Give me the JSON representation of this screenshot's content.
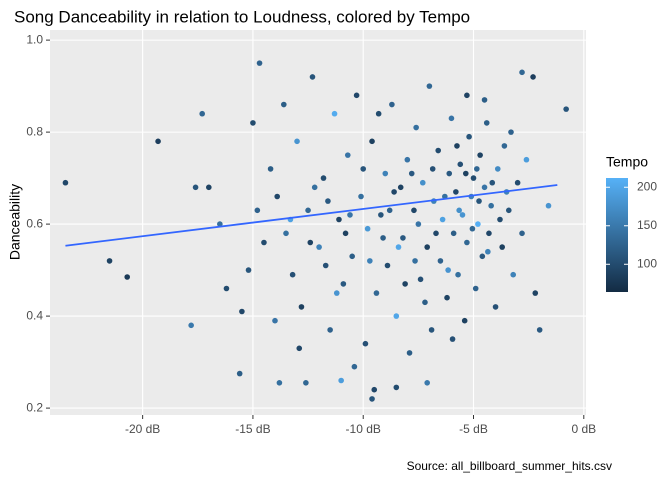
{
  "chart_data": {
    "type": "scatter",
    "title": "Song Danceability in relation to Loudness, colored by Tempo",
    "y_label": "Danceability",
    "caption": "Source: all_billboard_summer_hits.csv",
    "legend_title": "Tempo",
    "xlim": [
      -24.2,
      0.1
    ],
    "ylim": [
      0.185,
      1.022
    ],
    "xticks": [
      {
        "value": -20,
        "label": "-20 dB"
      },
      {
        "value": -15,
        "label": "-15 dB"
      },
      {
        "value": -10,
        "label": "-10 dB"
      },
      {
        "value": -5,
        "label": "-5 dB"
      },
      {
        "value": 0,
        "label": "0 dB"
      }
    ],
    "yticks": [
      {
        "value": 0.2,
        "label": "0.2"
      },
      {
        "value": 0.4,
        "label": "0.4"
      },
      {
        "value": 0.6,
        "label": "0.6"
      },
      {
        "value": 0.8,
        "label": "0.8"
      },
      {
        "value": 1.0,
        "label": "1.0"
      }
    ],
    "grid": true,
    "color_scale": {
      "range": [
        64,
        212
      ],
      "ticks": [
        100,
        150,
        200
      ],
      "low": "#132B43",
      "high": "#56B1F7"
    },
    "x": [
      -23.5,
      -21.5,
      -20.7,
      -19.3,
      -17.8,
      -17.6,
      -17.3,
      -17.0,
      -16.5,
      -16.2,
      -15.5,
      -15.6,
      -15.2,
      -14.7,
      -15.0,
      -13.8,
      -12.6,
      -11.0,
      -9.6,
      -9.5,
      -8.5,
      -7.1,
      -5.3,
      -4.5,
      -2.8,
      -0.8,
      -2.3,
      -1.6,
      -14.2,
      -13.9,
      -13.5,
      -13.2,
      -13.0,
      -12.8,
      -12.5,
      -12.3,
      -12.0,
      -11.8,
      -11.5,
      -11.3,
      -11.1,
      -10.9,
      -10.7,
      -10.5,
      -10.3,
      -10.1,
      -9.9,
      -9.8,
      -9.6,
      -9.4,
      -9.2,
      -9.0,
      -8.9,
      -8.7,
      -8.5,
      -8.3,
      -8.2,
      -8.0,
      -7.9,
      -7.7,
      -7.6,
      -7.4,
      -7.3,
      -7.1,
      -7.0,
      -6.9,
      -6.8,
      -6.6,
      -6.5,
      -6.4,
      -6.2,
      -6.1,
      -6.0,
      -5.9,
      -5.8,
      -5.7,
      -5.6,
      -5.5,
      -5.4,
      -5.3,
      -5.2,
      -5.1,
      -5.0,
      -4.9,
      -4.8,
      -4.7,
      -4.6,
      -4.5,
      -4.4,
      -4.3,
      -4.2,
      -4.0,
      -3.9,
      -3.7,
      -3.6,
      -3.4,
      -3.2,
      -3.0,
      -2.8,
      -2.6,
      -2.2,
      -2.0,
      -14.0,
      -13.6,
      -12.9,
      -12.2,
      -11.7,
      -11.2,
      -10.8,
      -10.4,
      -10.0,
      -9.7,
      -9.3,
      -8.8,
      -8.4,
      -8.1,
      -7.8,
      -7.5,
      -7.2,
      -6.7,
      -6.3,
      -5.95,
      -5.65,
      -5.35,
      -5.05,
      -4.75,
      -4.35,
      -3.8,
      -3.3,
      -13.3,
      -12.4,
      -11.6,
      -10.6,
      -9.1,
      -8.6,
      -7.65,
      -6.85,
      -6.15,
      -5.75,
      -4.85,
      -4.15,
      -3.5,
      -14.5,
      -14.8
    ],
    "values": [
      0.69,
      0.52,
      0.485,
      0.78,
      0.38,
      0.68,
      0.84,
      0.68,
      0.6,
      0.46,
      0.41,
      0.275,
      0.5,
      0.95,
      0.82,
      0.255,
      0.255,
      0.26,
      0.22,
      0.24,
      0.245,
      0.255,
      0.88,
      0.87,
      0.93,
      0.85,
      0.92,
      0.64,
      0.72,
      0.66,
      0.58,
      0.49,
      0.78,
      0.42,
      0.63,
      0.92,
      0.55,
      0.7,
      0.37,
      0.84,
      0.61,
      0.47,
      0.75,
      0.53,
      0.88,
      0.66,
      0.34,
      0.59,
      0.78,
      0.45,
      0.62,
      0.71,
      0.51,
      0.86,
      0.4,
      0.68,
      0.57,
      0.74,
      0.32,
      0.63,
      0.81,
      0.48,
      0.69,
      0.55,
      0.9,
      0.37,
      0.65,
      0.76,
      0.52,
      0.61,
      0.44,
      0.71,
      0.83,
      0.58,
      0.67,
      0.49,
      0.73,
      0.62,
      0.39,
      0.56,
      0.79,
      0.66,
      0.7,
      0.46,
      0.6,
      0.75,
      0.53,
      0.68,
      0.82,
      0.58,
      0.64,
      0.42,
      0.72,
      0.55,
      0.77,
      0.63,
      0.49,
      0.69,
      0.58,
      0.74,
      0.45,
      0.37,
      0.39,
      0.86,
      0.33,
      0.68,
      0.51,
      0.45,
      0.58,
      0.29,
      0.72,
      0.52,
      0.84,
      0.63,
      0.55,
      0.47,
      0.71,
      0.6,
      0.43,
      0.58,
      0.66,
      0.35,
      0.63,
      0.71,
      0.59,
      0.65,
      0.54,
      0.61,
      0.8,
      0.61,
      0.56,
      0.65,
      0.62,
      0.57,
      0.67,
      0.52,
      0.72,
      0.5,
      0.77,
      0.72,
      0.69,
      0.67,
      0.56,
      0.63
    ],
    "tempo": [
      95,
      90,
      80,
      85,
      150,
      110,
      130,
      90,
      140,
      100,
      95,
      120,
      110,
      125,
      100,
      140,
      130,
      190,
      110,
      95,
      100,
      150,
      90,
      120,
      130,
      110,
      85,
      180,
      120,
      95,
      140,
      105,
      180,
      88,
      130,
      110,
      160,
      100,
      125,
      205,
      90,
      115,
      145,
      120,
      95,
      140,
      105,
      185,
      88,
      130,
      110,
      160,
      100,
      125,
      200,
      90,
      115,
      145,
      120,
      95,
      140,
      105,
      175,
      88,
      130,
      110,
      160,
      100,
      125,
      195,
      90,
      115,
      145,
      120,
      95,
      140,
      105,
      180,
      88,
      130,
      110,
      160,
      100,
      125,
      210,
      90,
      115,
      145,
      120,
      95,
      140,
      105,
      170,
      88,
      130,
      110,
      160,
      100,
      125,
      190,
      90,
      115,
      145,
      120,
      95,
      140,
      105,
      180,
      88,
      130,
      110,
      160,
      100,
      125,
      200,
      90,
      115,
      145,
      120,
      95,
      140,
      105,
      175,
      88,
      130,
      110,
      160,
      100,
      125,
      195,
      90,
      115,
      145,
      120,
      95,
      140,
      105,
      180,
      88,
      130,
      110,
      160,
      100,
      125
    ],
    "trend": {
      "x": [
        -23.5,
        -1.2
      ],
      "values": [
        0.553,
        0.685
      ],
      "color": "#3366FF"
    }
  }
}
